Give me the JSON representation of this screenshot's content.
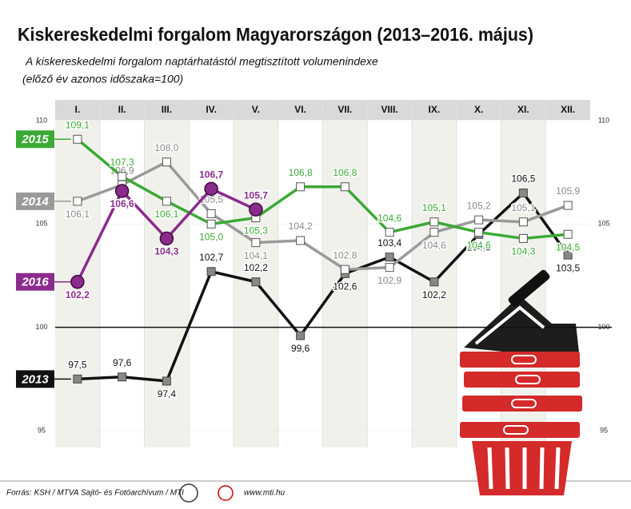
{
  "chart_data": {
    "type": "line",
    "title": "Kiskereskedelmi forgalom Magyarországon (2013–2016. május)",
    "subtitle": [
      "A kiskereskedelmi forgalom naptárhatástól megtisztított volumenindexe",
      "(előző év azonos időszaka=100)"
    ],
    "categories": [
      "I.",
      "II.",
      "III.",
      "IV.",
      "V.",
      "VI.",
      "VII.",
      "VIII.",
      "IX.",
      "X.",
      "XI.",
      "XII."
    ],
    "series": [
      {
        "name": "2013",
        "color": "#111111",
        "values": [
          97.5,
          97.6,
          97.4,
          102.7,
          102.2,
          99.6,
          102.6,
          103.4,
          102.2,
          104.5,
          106.5,
          103.5
        ],
        "value_labels": [
          "97,5",
          "97,6",
          "97,4",
          "102,7",
          "102,2",
          "99,6",
          "102,6",
          "103,4",
          "102,2",
          "104,5",
          "106,5",
          "103,5"
        ]
      },
      {
        "name": "2014",
        "color": "#9a9a9a",
        "values": [
          106.1,
          106.9,
          108.0,
          105.5,
          104.1,
          104.2,
          102.8,
          102.9,
          104.6,
          105.2,
          105.1,
          105.9
        ],
        "value_labels": [
          "106,1",
          "106,9",
          "108,0",
          "105,5",
          "104,1",
          "104,2",
          "102,8",
          "102,9",
          "104,6",
          "105,2",
          "105,1",
          "105,9"
        ]
      },
      {
        "name": "2015",
        "color": "#3aaa35",
        "values": [
          109.1,
          107.3,
          106.1,
          105.0,
          105.3,
          106.8,
          106.8,
          104.6,
          105.1,
          104.6,
          104.3,
          104.5
        ],
        "value_labels": [
          "109,1",
          "107,3",
          "106,1",
          "105,0",
          "105,3",
          "106,8",
          "106,8",
          "104,6",
          "105,1",
          "104,6",
          "104,3",
          "104,5"
        ]
      },
      {
        "name": "2016",
        "color": "#8b2c8c",
        "values": [
          102.2,
          106.6,
          104.3,
          106.7,
          105.7,
          null,
          null,
          null,
          null,
          null,
          null,
          null
        ],
        "value_labels": [
          "102,2",
          "106,6",
          "104,3",
          "106,7",
          "105,7",
          null,
          null,
          null,
          null,
          null,
          null,
          null
        ]
      }
    ],
    "ylim": [
      95,
      110
    ],
    "yticks": [
      95,
      100,
      105,
      110
    ],
    "reference_line": 100,
    "source": "Forrás: KSH / MTVA Sajtó- és Fotóarchívum / MTI",
    "url": "www.mti.hu"
  }
}
